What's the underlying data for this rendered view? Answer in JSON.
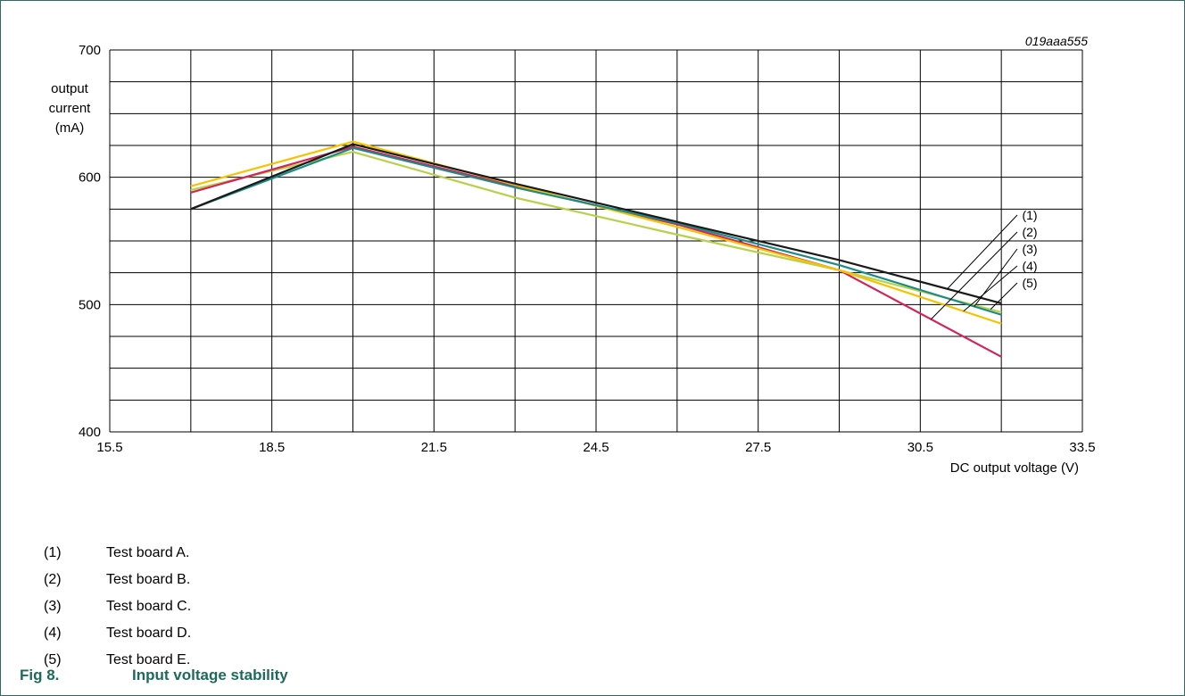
{
  "figure_code": "019aaa555",
  "chart_data": {
    "type": "line",
    "title": "",
    "xlabel": "DC output voltage (V)",
    "ylabel": [
      "output",
      "current",
      "(mA)"
    ],
    "xlim": [
      15.5,
      33.5
    ],
    "ylim": [
      400,
      700
    ],
    "x_ticks": [
      "15.5",
      "18.5",
      "21.5",
      "24.5",
      "27.5",
      "30.5",
      "33.5"
    ],
    "y_ticks": [
      "400",
      "500",
      "600",
      "700"
    ],
    "x_grid_step": 1.5,
    "y_grid_step": 25,
    "grid": true,
    "series": [
      {
        "name": "(1)",
        "color": "#1a1a1a",
        "x": [
          17,
          20,
          23,
          26,
          29,
          32
        ],
        "y": [
          575,
          626,
          595,
          565,
          535,
          501
        ]
      },
      {
        "name": "(2)",
        "color": "#d4245a",
        "x": [
          17,
          20,
          23,
          26,
          29,
          32
        ],
        "y": [
          588,
          624,
          593,
          563,
          527,
          459
        ]
      },
      {
        "name": "(3)",
        "color": "#1a8c86",
        "x": [
          17,
          20,
          23,
          26,
          29,
          32
        ],
        "y": [
          575,
          623,
          592,
          564,
          531,
          492
        ]
      },
      {
        "name": "(4)",
        "color": "#f5c400",
        "x": [
          17,
          20,
          23,
          26,
          29,
          32
        ],
        "y": [
          593,
          628,
          594,
          561,
          527,
          485
        ]
      },
      {
        "name": "(5)",
        "color": "#b8d14a",
        "x": [
          17,
          20,
          23,
          26,
          29,
          32
        ],
        "y": [
          590,
          620,
          584,
          555,
          527,
          494
        ]
      }
    ]
  },
  "legend": [
    {
      "num": "(1)",
      "text": "Test board A."
    },
    {
      "num": "(2)",
      "text": "Test board B."
    },
    {
      "num": "(3)",
      "text": "Test board C."
    },
    {
      "num": "(4)",
      "text": "Test board D."
    },
    {
      "num": "(5)",
      "text": "Test board E."
    }
  ],
  "caption": {
    "label": "Fig 8.",
    "title": "Input voltage stability"
  }
}
